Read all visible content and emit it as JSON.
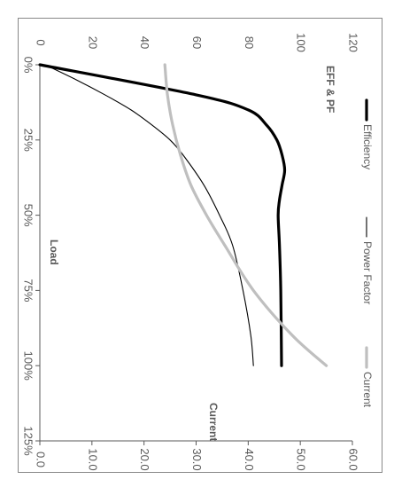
{
  "chart_data": {
    "type": "line",
    "orientation": "rotated-90-clockwise",
    "title": "EFF & PF",
    "x_axis": {
      "label": "Load",
      "tick_labels": [
        "0%",
        "25%",
        "50%",
        "75%",
        "100%",
        "125%"
      ],
      "range": [
        0,
        125
      ]
    },
    "y_axis_left": {
      "label": "",
      "tick_labels": [
        "0",
        "20",
        "40",
        "60",
        "80",
        "100",
        "120"
      ],
      "range": [
        0,
        120
      ]
    },
    "y_axis_right": {
      "label": "Current",
      "tick_labels": [
        "0.0",
        "10.0",
        "20.0",
        "30.0",
        "40.0",
        "50.0",
        "60.0"
      ],
      "range": [
        0,
        60
      ]
    },
    "grid": false,
    "legend_position": "right",
    "series": [
      {
        "name": "Efficiency",
        "axis": "left",
        "color": "#000000",
        "style": "thick",
        "points": [
          [
            0,
            0
          ],
          [
            10,
            60
          ],
          [
            15,
            80
          ],
          [
            20,
            87
          ],
          [
            25,
            91
          ],
          [
            30,
            93
          ],
          [
            35,
            94
          ],
          [
            40,
            93
          ],
          [
            45,
            92
          ],
          [
            50,
            91.5
          ],
          [
            60,
            92
          ],
          [
            75,
            92.5
          ],
          [
            100,
            92.8
          ]
        ]
      },
      {
        "name": "Power Factor",
        "axis": "left",
        "color": "#000000",
        "style": "thin",
        "points": [
          [
            0,
            2
          ],
          [
            5,
            14
          ],
          [
            10,
            25
          ],
          [
            15,
            35
          ],
          [
            20,
            43
          ],
          [
            25,
            50
          ],
          [
            30,
            55
          ],
          [
            40,
            63
          ],
          [
            50,
            69
          ],
          [
            60,
            74
          ],
          [
            75,
            78
          ],
          [
            90,
            81
          ],
          [
            100,
            82
          ]
        ]
      },
      {
        "name": "Current",
        "axis": "right",
        "color": "#bfbfbf",
        "style": "thick",
        "points": [
          [
            0,
            24
          ],
          [
            10,
            24.5
          ],
          [
            20,
            25.5
          ],
          [
            30,
            27
          ],
          [
            40,
            29
          ],
          [
            50,
            32
          ],
          [
            60,
            35.5
          ],
          [
            75,
            41
          ],
          [
            90,
            48.5
          ],
          [
            100,
            55
          ]
        ]
      }
    ],
    "annotations": [
      "EFF & PF",
      "Load",
      "Current"
    ]
  }
}
